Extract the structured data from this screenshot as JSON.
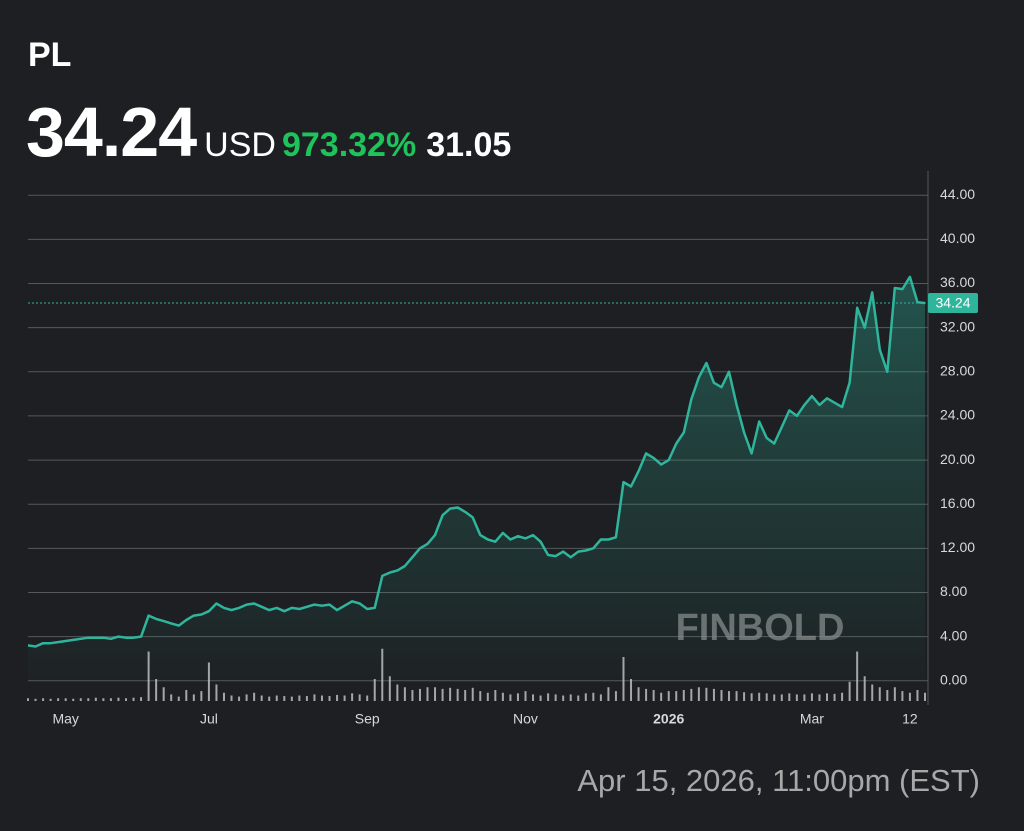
{
  "header": {
    "symbol": "PL",
    "price": "34.24",
    "currency": "USD",
    "change": "973.32%",
    "change_value": "31.05"
  },
  "chart_data": {
    "type": "line",
    "categories": [
      null,
      null,
      null,
      null,
      null,
      "May",
      null,
      null,
      null,
      null,
      null,
      null,
      null,
      null,
      null,
      null,
      null,
      null,
      null,
      null,
      null,
      null,
      null,
      null,
      "Jul",
      null,
      null,
      null,
      null,
      null,
      null,
      null,
      null,
      null,
      null,
      null,
      null,
      null,
      null,
      null,
      null,
      null,
      null,
      null,
      null,
      "Sep",
      null,
      null,
      null,
      null,
      null,
      null,
      null,
      null,
      null,
      null,
      null,
      null,
      null,
      null,
      null,
      null,
      null,
      null,
      null,
      null,
      "Nov",
      null,
      null,
      null,
      null,
      null,
      null,
      null,
      null,
      null,
      null,
      null,
      null,
      null,
      null,
      null,
      null,
      null,
      null,
      "2026",
      null,
      null,
      null,
      null,
      null,
      null,
      null,
      null,
      null,
      null,
      null,
      null,
      null,
      null,
      null,
      null,
      null,
      null,
      "Mar",
      null,
      null,
      null,
      null,
      null,
      null,
      null,
      null,
      null,
      null,
      null,
      null,
      "12",
      null,
      null
    ],
    "values": [
      3.2,
      3.1,
      3.4,
      3.4,
      3.5,
      3.6,
      3.7,
      3.8,
      3.9,
      3.9,
      3.9,
      3.8,
      4.0,
      3.9,
      3.9,
      4.0,
      5.9,
      5.6,
      5.4,
      5.2,
      5.0,
      5.5,
      5.9,
      6.0,
      6.3,
      7.0,
      6.6,
      6.4,
      6.6,
      6.9,
      7.0,
      6.7,
      6.4,
      6.6,
      6.3,
      6.6,
      6.5,
      6.7,
      6.9,
      6.8,
      6.9,
      6.4,
      6.8,
      7.2,
      7.0,
      6.5,
      6.6,
      9.5,
      9.8,
      10.0,
      10.4,
      11.2,
      12.0,
      12.4,
      13.2,
      15.0,
      15.6,
      15.7,
      15.3,
      14.8,
      13.2,
      12.8,
      12.6,
      13.4,
      12.8,
      13.1,
      12.9,
      13.2,
      12.6,
      11.4,
      11.3,
      11.7,
      11.2,
      11.7,
      11.8,
      12.0,
      12.8,
      12.8,
      13.0,
      18.0,
      17.6,
      19.0,
      20.6,
      20.2,
      19.6,
      20.0,
      21.5,
      22.5,
      25.5,
      27.5,
      28.8,
      27.0,
      26.6,
      28.0,
      25.0,
      22.5,
      20.6,
      23.5,
      22.0,
      21.5,
      23.0,
      24.5,
      24.0,
      25.0,
      25.8,
      25.0,
      25.6,
      25.2,
      24.8,
      27.0,
      33.8,
      32.0,
      35.2,
      30.0,
      28.0,
      35.6,
      35.5,
      36.6,
      34.3,
      34.24
    ],
    "volume": [
      5,
      4,
      5,
      4,
      5,
      5,
      4,
      5,
      5,
      6,
      5,
      5,
      6,
      5,
      6,
      7,
      90,
      40,
      25,
      12,
      8,
      20,
      12,
      18,
      70,
      30,
      15,
      10,
      8,
      12,
      15,
      10,
      8,
      10,
      9,
      8,
      10,
      9,
      12,
      10,
      9,
      11,
      10,
      14,
      12,
      10,
      40,
      95,
      45,
      30,
      25,
      20,
      22,
      25,
      25,
      22,
      24,
      22,
      20,
      24,
      18,
      15,
      20,
      15,
      12,
      14,
      18,
      12,
      10,
      14,
      12,
      10,
      12,
      10,
      14,
      15,
      12,
      25,
      18,
      80,
      40,
      25,
      22,
      20,
      15,
      18,
      18,
      20,
      22,
      25,
      24,
      22,
      20,
      18,
      18,
      16,
      14,
      15,
      14,
      12,
      12,
      14,
      12,
      12,
      14,
      12,
      14,
      13,
      15,
      35,
      90,
      45,
      30,
      25,
      20,
      25,
      18,
      15,
      20,
      15
    ],
    "vlim": [
      0,
      100
    ],
    "color": "#2fb59c",
    "volume_color": "#c8c8c8",
    "last_value": 34.24,
    "last_label": "34.24",
    "ylim": [
      -2.2,
      46.2
    ],
    "yticks": [
      {
        "value": 0,
        "label": "0.00"
      },
      {
        "value": 4,
        "label": "4.00"
      },
      {
        "value": 8,
        "label": "8.00"
      },
      {
        "value": 12,
        "label": "12.00"
      },
      {
        "value": 16,
        "label": "16.00"
      },
      {
        "value": 20,
        "label": "20.00"
      },
      {
        "value": 24,
        "label": "24.00"
      },
      {
        "value": 28,
        "label": "28.00"
      },
      {
        "value": 32,
        "label": "32.00"
      },
      {
        "value": 36,
        "label": "36.00"
      },
      {
        "value": 40,
        "label": "40.00"
      },
      {
        "value": 44,
        "label": "44.00"
      }
    ],
    "grid": true,
    "watermark": "FINBOLD"
  },
  "footer": {
    "timestamp": "Apr 15, 2026, 11:00pm (EST)"
  }
}
